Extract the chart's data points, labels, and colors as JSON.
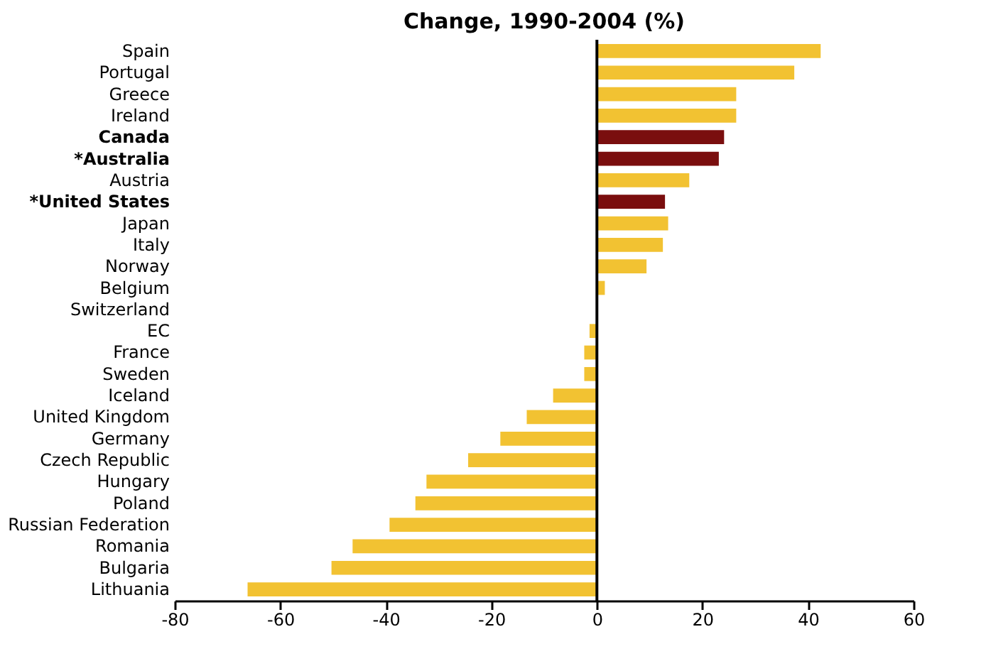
{
  "chart_data": {
    "type": "bar",
    "orientation": "horizontal",
    "title": "Change, 1990-2004 (%)",
    "categories": [
      "Spain",
      "Portugal",
      "Greece",
      "Ireland",
      "Canada",
      "*Australia",
      "Austria",
      "*United States",
      "Japan",
      "Italy",
      "Norway",
      "Belgium",
      "Switzerland",
      "EC",
      "France",
      "Sweden",
      "Iceland",
      "United Kingdom",
      "Germany",
      "Czech Republic",
      "Hungary",
      "Poland",
      "Russian Federation",
      "Romania",
      "Bulgaria",
      "Lithuania"
    ],
    "values": [
      42.4,
      37.4,
      26.4,
      26.4,
      24.1,
      23.1,
      17.5,
      12.9,
      13.5,
      12.5,
      9.4,
      1.5,
      0,
      -1.4,
      -2.4,
      -2.4,
      -8.3,
      -13.3,
      -18.3,
      -24.4,
      -32.3,
      -34.4,
      -39.3,
      -46.3,
      -50.3,
      -66.2
    ],
    "colors": [
      "#f2c232",
      "#f2c232",
      "#f2c232",
      "#f2c232",
      "#7a0e0e",
      "#7a0e0e",
      "#f2c232",
      "#7a0e0e",
      "#f2c232",
      "#f2c232",
      "#f2c232",
      "#f2c232",
      "#f2c232",
      "#f2c232",
      "#f2c232",
      "#f2c232",
      "#f2c232",
      "#f2c232",
      "#f2c232",
      "#f2c232",
      "#f2c232",
      "#f2c232",
      "#f2c232",
      "#f2c232",
      "#f2c232",
      "#f2c232"
    ],
    "xlim": [
      -80,
      60
    ],
    "xticks": [
      -80,
      -60,
      -40,
      -20,
      0,
      20,
      40,
      60
    ],
    "ref_lines": [
      {
        "axis": "x",
        "value": 0,
        "color": "#000000"
      }
    ],
    "grid": false
  }
}
